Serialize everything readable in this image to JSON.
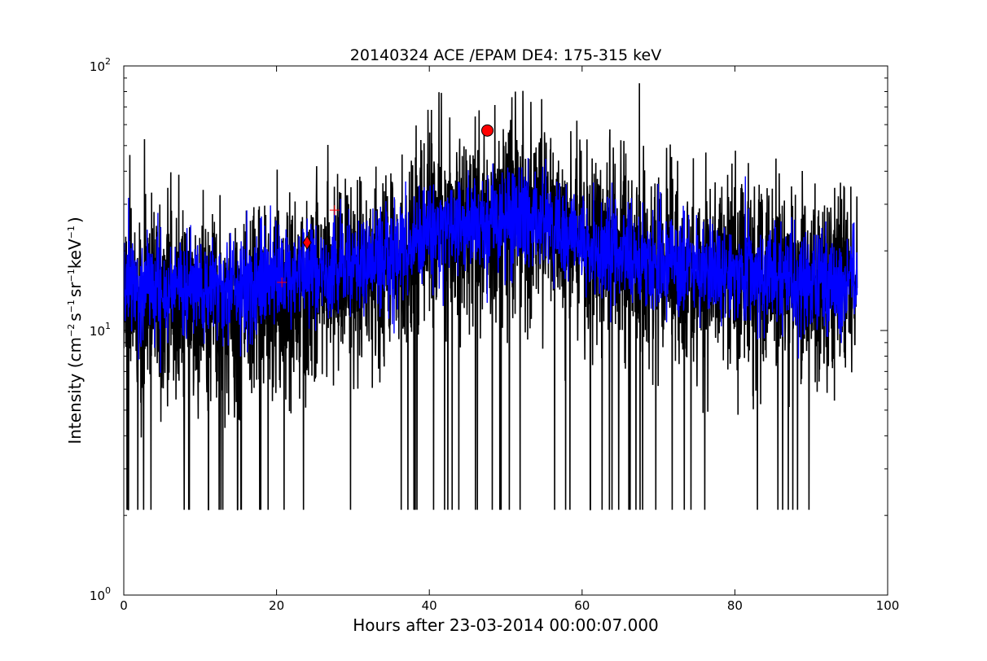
{
  "chart_data": {
    "type": "line",
    "title": "20140324 ACE /EPAM DE4: 175-315 keV",
    "xlabel": "Hours after 23-03-2014 00:00:07.000",
    "ylabel": "Intensity (cm⁻² s⁻¹ sr⁻¹ keV⁻¹)",
    "ylabel_parts": {
      "prefix": "Intensity (cm",
      "exp1": "−2",
      "s": "s",
      "exp2": "−1",
      "sr": "sr",
      "exp3": "−1",
      "kev": "keV",
      "exp4": "−1",
      "suffix": ")"
    },
    "xlim": [
      0,
      100
    ],
    "ylim": [
      1,
      100
    ],
    "yscale": "log",
    "grid": false,
    "x_ticks": [
      "0",
      "20",
      "40",
      "60",
      "80",
      "100"
    ],
    "y_ticks": [
      {
        "base": "10",
        "exp": "0"
      },
      {
        "base": "10",
        "exp": "1"
      },
      {
        "base": "10",
        "exp": "2"
      }
    ],
    "x_range_data": [
      0,
      96
    ],
    "series": [
      {
        "color": "#000000",
        "profile": {
          "x": [
            0,
            10,
            20,
            30,
            38,
            40,
            45,
            50,
            55,
            58,
            60,
            70,
            80,
            90,
            96
          ],
          "y": [
            12.5,
            12.5,
            13.5,
            16,
            19,
            24,
            26,
            27,
            27.5,
            24,
            21,
            18,
            16,
            15,
            14.5
          ]
        },
        "min_floor": 2.1
      },
      {
        "color": "#0000ff",
        "profile": {
          "x": [
            0,
            10,
            20,
            30,
            38,
            40,
            45,
            50,
            55,
            58,
            60,
            70,
            80,
            90,
            96
          ],
          "y": [
            14.5,
            14.5,
            15.5,
            18,
            20,
            24,
            25.5,
            26,
            26.5,
            24,
            21,
            18,
            16.5,
            15.5,
            15
          ]
        }
      }
    ],
    "markers": [
      {
        "x": 47.6,
        "y": 57,
        "shape": "circle",
        "color": "#ff0000",
        "edge": "#000000"
      },
      {
        "x": 24.0,
        "y": 21.5,
        "shape": "diamond",
        "color": "#ff0000",
        "edge": "#000000"
      },
      {
        "x": 20.7,
        "y": 15.2,
        "shape": "plus",
        "color": "#ff0000"
      },
      {
        "x": 27.6,
        "y": 28.5,
        "shape": "plus",
        "color": "#ff0000"
      }
    ]
  }
}
